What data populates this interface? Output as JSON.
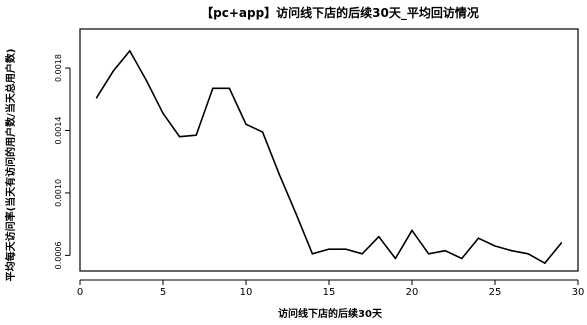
{
  "chart_data": {
    "type": "line",
    "title": "【pc+app】访问线下店的后续30天_平均回访情况",
    "xlabel": "访问线下店的后续30天",
    "ylabel": "平均每天访问率(当天有访问的用户数/当天总用户数)",
    "xlim": [
      0,
      30
    ],
    "ylim": [
      0.0005,
      0.00205
    ],
    "x_ticks": [
      0,
      5,
      10,
      15,
      20,
      25,
      30
    ],
    "x_tick_labels": [
      "0",
      "5",
      "10",
      "15",
      "20",
      "25",
      "30"
    ],
    "y_ticks": [
      0.0006,
      0.001,
      0.0014,
      0.0018
    ],
    "y_tick_labels": [
      "0.0006",
      "0.0010",
      "0.0014",
      "0.0018"
    ],
    "series": [
      {
        "x": [
          1,
          2,
          3,
          4,
          5,
          6,
          7,
          8,
          9,
          10,
          11,
          12,
          13,
          14,
          15,
          16,
          17,
          18,
          19,
          20,
          21,
          22,
          23,
          24,
          25,
          26,
          27,
          28,
          29
        ],
        "values": [
          0.00161,
          0.00178,
          0.00191,
          0.00172,
          0.00151,
          0.00136,
          0.00137,
          0.00167,
          0.00167,
          0.00144,
          0.00139,
          0.00112,
          0.00087,
          0.00061,
          0.00064,
          0.00064,
          0.00061,
          0.00072,
          0.00058,
          0.00076,
          0.00061,
          0.00063,
          0.00058,
          0.00071,
          0.00066,
          0.00063,
          0.00061,
          0.00055,
          0.00068
        ]
      }
    ]
  }
}
